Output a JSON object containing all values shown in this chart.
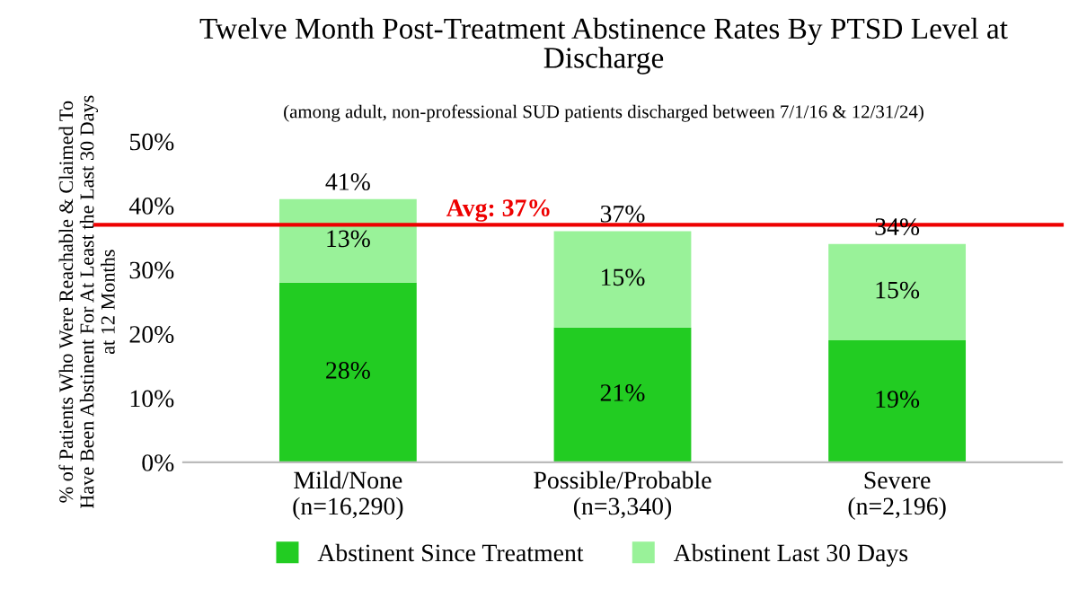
{
  "chart_data": {
    "type": "bar",
    "title": "Twelve Month Post-Treatment Abstinence Rates By PTSD Level at\nDischarge",
    "subtitle": "(among adult, non-professional SUD patients discharged between 7/1/16 & 12/31/24)",
    "ylabel": "% of Patients Who Were Reachable & Claimed To\nHave Been Abstinent For At Least the Last 30 Days\nat 12 Months",
    "categories": [
      "Mild/None\n(n=16,290)",
      "Possible/Probable\n(n=3,340)",
      "Severe\n(n=2,196)"
    ],
    "stacked": true,
    "series": [
      {
        "name": "Abstinent Since Treatment",
        "color": "#22cc22",
        "values": [
          28,
          21,
          19
        ],
        "value_labels": [
          "28%",
          "21%",
          "19%"
        ]
      },
      {
        "name": "Abstinent Last 30 Days",
        "color": "#99f299",
        "values": [
          13,
          15,
          15
        ],
        "value_labels": [
          "13%",
          "15%",
          "15%"
        ]
      }
    ],
    "totals": [
      "41%",
      "37%",
      "34%"
    ],
    "ylim": [
      0,
      50
    ],
    "yticks": [
      {
        "value": 0,
        "label": "0%"
      },
      {
        "value": 10,
        "label": "10%"
      },
      {
        "value": 20,
        "label": "20%"
      },
      {
        "value": 30,
        "label": "30%"
      },
      {
        "value": 40,
        "label": "40%"
      },
      {
        "value": 50,
        "label": "50%"
      }
    ],
    "ref_lines": [
      {
        "axis": "y",
        "value": 37,
        "label": "Avg: 37%",
        "color": "#ee0000"
      }
    ],
    "grid": false,
    "legend": "bottom"
  }
}
